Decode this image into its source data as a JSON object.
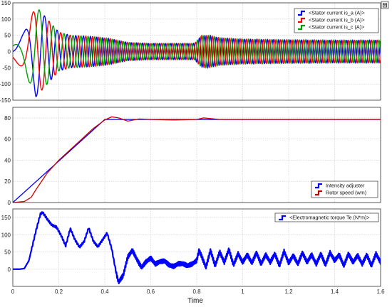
{
  "window": {
    "corner_icon": "dock-icon"
  },
  "chart_data": [
    {
      "type": "line",
      "ylim": [
        -150,
        150
      ],
      "yticks": [
        -150,
        -100,
        -50,
        0,
        50,
        100,
        150
      ],
      "xlim": [
        0,
        1.6
      ],
      "grid": true,
      "legend_position": "top-right",
      "series": [
        {
          "name": "<Stator current is_a (A)>",
          "color": "#0000ff"
        },
        {
          "name": "<Stator current is_b (A)>",
          "color": "#ff0000"
        },
        {
          "name": "<Stator current is_c (A)>",
          "color": "#00a000"
        }
      ],
      "envelope": {
        "x": [
          0,
          0.05,
          0.1,
          0.15,
          0.2,
          0.25,
          0.3,
          0.35,
          0.42,
          0.5,
          0.6,
          0.7,
          0.79,
          0.82,
          0.85,
          0.9,
          1.0,
          1.2,
          1.4,
          1.6
        ],
        "amplitude": [
          20,
          60,
          140,
          100,
          60,
          50,
          48,
          46,
          40,
          28,
          25,
          25,
          25,
          48,
          50,
          42,
          38,
          36,
          35,
          35
        ]
      }
    },
    {
      "type": "line",
      "ylim": [
        0,
        90
      ],
      "yticks": [
        0,
        20,
        40,
        60,
        80
      ],
      "xlim": [
        0,
        1.6
      ],
      "grid": true,
      "legend_position": "bottom-right",
      "series": [
        {
          "name": "Intensity  adjuster",
          "color": "#0000ff",
          "x": [
            0,
            0.4,
            0.41,
            0.5,
            0.6,
            0.8,
            1.0,
            1.2,
            1.4,
            1.6
          ],
          "y": [
            0,
            78.5,
            78.5,
            78.5,
            78.5,
            78.5,
            78.5,
            78.5,
            78.5,
            78.5
          ]
        },
        {
          "name": "Rotor speed (wm)",
          "color": "#cc0000",
          "x": [
            0,
            0.05,
            0.08,
            0.1,
            0.15,
            0.2,
            0.25,
            0.3,
            0.35,
            0.4,
            0.43,
            0.46,
            0.5,
            0.55,
            0.6,
            0.7,
            0.8,
            0.83,
            0.9,
            1.0,
            1.2,
            1.4,
            1.6
          ],
          "y": [
            0,
            1,
            5,
            12,
            28,
            40,
            50,
            60,
            70,
            78,
            81,
            80,
            77,
            79,
            78.5,
            78,
            78.5,
            80,
            78.5,
            78.5,
            78.5,
            78.5,
            78.5
          ]
        }
      ]
    },
    {
      "type": "line",
      "ylim": [
        -50,
        175
      ],
      "yticks": [
        0,
        50,
        100,
        150
      ],
      "xlim": [
        0,
        1.6
      ],
      "xticks": [
        0,
        0.2,
        0.4,
        0.6,
        0.8,
        1,
        1.2,
        1.4,
        1.6
      ],
      "xlabel": "Time",
      "grid": true,
      "legend_position": "top-right",
      "series": [
        {
          "name": "<Electromagnetic torque Te (N*m)>",
          "color": "#0000ff",
          "x": [
            0,
            0.03,
            0.05,
            0.07,
            0.1,
            0.12,
            0.13,
            0.15,
            0.17,
            0.19,
            0.21,
            0.23,
            0.25,
            0.27,
            0.29,
            0.31,
            0.33,
            0.35,
            0.37,
            0.39,
            0.41,
            0.43,
            0.45,
            0.46,
            0.48,
            0.5,
            0.52,
            0.54,
            0.56,
            0.58,
            0.6,
            0.62,
            0.64,
            0.66,
            0.68,
            0.7,
            0.72,
            0.74,
            0.76,
            0.78,
            0.8,
            0.81,
            0.82,
            0.84,
            0.86,
            0.88,
            0.9,
            0.92,
            0.94,
            0.96,
            0.98,
            1.0,
            1.02,
            1.04,
            1.06,
            1.08,
            1.1,
            1.12,
            1.14,
            1.16,
            1.18,
            1.2,
            1.22,
            1.24,
            1.26,
            1.28,
            1.3,
            1.32,
            1.34,
            1.36,
            1.38,
            1.4,
            1.42,
            1.44,
            1.46,
            1.48,
            1.5,
            1.52,
            1.54,
            1.56,
            1.58,
            1.6
          ],
          "y": [
            0,
            0,
            2,
            25,
            110,
            160,
            165,
            145,
            128,
            122,
            98,
            68,
            118,
            86,
            64,
            80,
            120,
            82,
            65,
            85,
            105,
            60,
            -12,
            -38,
            -18,
            35,
            55,
            28,
            5,
            22,
            32,
            15,
            22,
            24,
            12,
            8,
            16,
            16,
            10,
            15,
            25,
            55,
            40,
            5,
            55,
            10,
            50,
            20,
            58,
            12,
            45,
            20,
            42,
            18,
            48,
            15,
            42,
            20,
            45,
            10,
            52,
            18,
            40,
            15,
            48,
            20,
            42,
            15,
            45,
            12,
            48,
            25,
            42,
            10,
            45,
            20,
            40,
            15,
            42,
            10,
            45,
            20
          ]
        }
      ]
    }
  ]
}
